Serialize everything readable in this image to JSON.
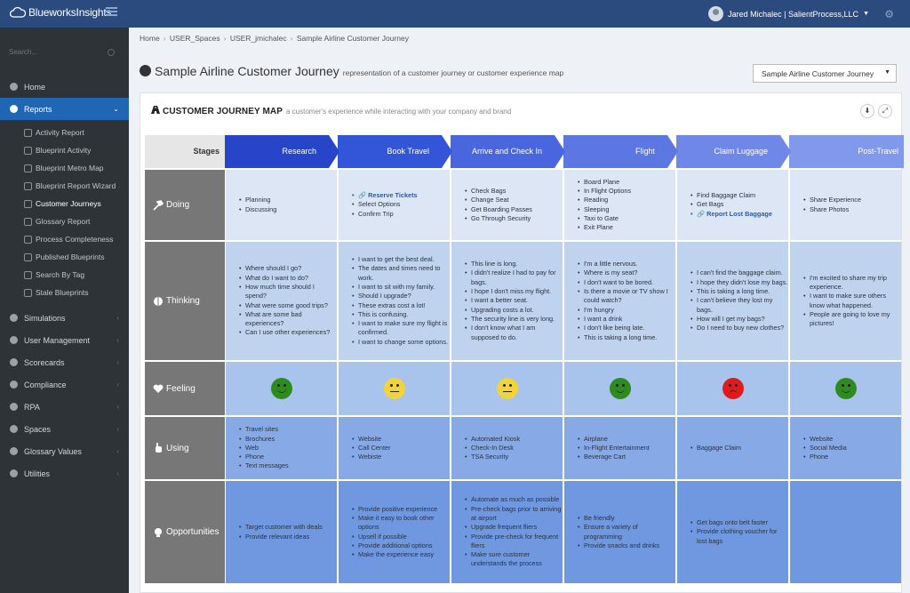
{
  "app": {
    "brand": "BlueworksInsights",
    "user": "Jared Michalec | SalientProcess,LLC"
  },
  "sidebar": {
    "search_placeholder": "Search...",
    "items": [
      {
        "label": "Home"
      },
      {
        "label": "Reports"
      },
      {
        "label": "Simulations"
      },
      {
        "label": "User Management"
      },
      {
        "label": "Scorecards"
      },
      {
        "label": "Compliance"
      },
      {
        "label": "RPA"
      },
      {
        "label": "Spaces"
      },
      {
        "label": "Glossary Values"
      },
      {
        "label": "Utilities"
      }
    ],
    "report_items": [
      {
        "label": "Activity Report"
      },
      {
        "label": "Blueprint Activity"
      },
      {
        "label": "Blueprint Metro Map"
      },
      {
        "label": "Blueprint Report Wizard"
      },
      {
        "label": "Customer Journeys"
      },
      {
        "label": "Glossary Report"
      },
      {
        "label": "Process Completeness"
      },
      {
        "label": "Published Blueprints"
      },
      {
        "label": "Search By Tag"
      },
      {
        "label": "Stale Blueprints"
      }
    ]
  },
  "breadcrumb": [
    "Home",
    "USER_Spaces",
    "USER_jmichalec",
    "Sample Airline Customer Journey"
  ],
  "page": {
    "title": "Sample Airline Customer Journey",
    "description": "representation of a customer journey or customer experience map",
    "select_value": "Sample Airline Customer Journey"
  },
  "card": {
    "title": "CUSTOMER JOURNEY MAP",
    "subtitle": "a customer's experience while interacting with your company and brand"
  },
  "map": {
    "stages_label": "Stages",
    "stages": [
      "Research",
      "Book Travel",
      "Arrive and Check In",
      "Flight",
      "Claim Luggage",
      "Post-Travel"
    ],
    "stage_colors": [
      "#2645c8",
      "#3355d8",
      "#4a66de",
      "#5c77e2",
      "#6f87e6",
      "#8199ea"
    ],
    "rows": [
      {
        "label": "Doing",
        "color": "#dce6f4",
        "icon": "hammer-icon",
        "cells": [
          [
            {
              "t": "Planning"
            },
            {
              "t": "Discussing"
            }
          ],
          [
            {
              "t": "Reserve Tickets",
              "link": true
            },
            {
              "t": "Select Options"
            },
            {
              "t": "Confirm Trip"
            }
          ],
          [
            {
              "t": "Check Bags"
            },
            {
              "t": "Change Seat"
            },
            {
              "t": "Get Boarding Passes"
            },
            {
              "t": "Go Through Security"
            }
          ],
          [
            {
              "t": "Board Plane"
            },
            {
              "t": "In Flight Options"
            },
            {
              "t": "Reading"
            },
            {
              "t": "Sleeping"
            },
            {
              "t": "Taxi to Gate"
            },
            {
              "t": "Exit Plane"
            }
          ],
          [
            {
              "t": "Find Baggage Claim"
            },
            {
              "t": "Get Bags"
            },
            {
              "t": "Report Lost Baggage",
              "link": true
            }
          ],
          [
            {
              "t": "Share Experience"
            },
            {
              "t": "Share Photos"
            }
          ]
        ]
      },
      {
        "label": "Thinking",
        "color": "#c0d3ee",
        "icon": "brain-icon",
        "cells": [
          [
            {
              "t": "Where should I go?"
            },
            {
              "t": "What do I want to do?"
            },
            {
              "t": "How much time should I spend?"
            },
            {
              "t": "What were some good trips?"
            },
            {
              "t": "What are some bad experiences?"
            },
            {
              "t": "Can I use other experiences?"
            }
          ],
          [
            {
              "t": "I want to get the best deal."
            },
            {
              "t": "The dates and times need to work."
            },
            {
              "t": "I want to sit with my family."
            },
            {
              "t": "Should I upgrade?"
            },
            {
              "t": "These extras cost a lot!"
            },
            {
              "t": "This is confusing."
            },
            {
              "t": "I want to make sure my flight is confirmed."
            },
            {
              "t": "I want to change some options."
            }
          ],
          [
            {
              "t": "This line is long."
            },
            {
              "t": "I didn't realize I had to pay for bags."
            },
            {
              "t": "I hope I don't miss my flight."
            },
            {
              "t": "I want a better seat."
            },
            {
              "t": "Upgrading costs a lot."
            },
            {
              "t": "The security line is very long."
            },
            {
              "t": "I don't know what I am supposed to do."
            }
          ],
          [
            {
              "t": "I'm a little nervous."
            },
            {
              "t": "Where is my seat?"
            },
            {
              "t": "I don't want to be bored."
            },
            {
              "t": "Is there a movie or TV show I could watch?"
            },
            {
              "t": "I'm hungry"
            },
            {
              "t": "I want a drink"
            },
            {
              "t": "I don't like being late."
            },
            {
              "t": "This is taking a long time."
            }
          ],
          [
            {
              "t": "I can't find the baggage claim."
            },
            {
              "t": "I hope they didn't lose my bags."
            },
            {
              "t": "This is taking a long time."
            },
            {
              "t": "I can't believe they lost my bags."
            },
            {
              "t": "How will I get my bags?"
            },
            {
              "t": "Do I need to buy new clothes?"
            }
          ],
          [
            {
              "t": "I'm excited to share my trip experience."
            },
            {
              "t": "I want to make sure others know what happened."
            },
            {
              "t": "People are going to love my pictures!"
            }
          ]
        ]
      },
      {
        "label": "Feeling",
        "color": "#a8c3ec",
        "icon": "heart-icon",
        "feelings": [
          {
            "mood": "happy",
            "color": "#2e8b1e"
          },
          {
            "mood": "neutral",
            "color": "#f2d43a"
          },
          {
            "mood": "neutral",
            "color": "#f2d43a"
          },
          {
            "mood": "happy",
            "color": "#2e8b1e"
          },
          {
            "mood": "sad",
            "color": "#e01b1b"
          },
          {
            "mood": "happy",
            "color": "#2e8b1e"
          }
        ]
      },
      {
        "label": "Using",
        "color": "#87aae6",
        "icon": "hand-icon",
        "cells": [
          [
            {
              "t": "Travel sites"
            },
            {
              "t": "Brochures"
            },
            {
              "t": "Web"
            },
            {
              "t": "Phone"
            },
            {
              "t": "Text messages"
            }
          ],
          [
            {
              "t": "Website"
            },
            {
              "t": "Call Center"
            },
            {
              "t": "Webiste"
            }
          ],
          [
            {
              "t": "Automated Kiosk"
            },
            {
              "t": "Check-In Desk"
            },
            {
              "t": "TSA Security"
            }
          ],
          [
            {
              "t": "Airplane"
            },
            {
              "t": "In-Flight Entertainment"
            },
            {
              "t": "Beverage Cart"
            }
          ],
          [
            {
              "t": "Baggage Claim"
            }
          ],
          [
            {
              "t": "Website"
            },
            {
              "t": "Social Media"
            },
            {
              "t": "Phone"
            }
          ]
        ]
      },
      {
        "label": "Opportunities",
        "color": "#6f98e0",
        "icon": "lightbulb-icon",
        "cells": [
          [
            {
              "t": "Target customer with deals"
            },
            {
              "t": "Provide relevant ideas"
            }
          ],
          [
            {
              "t": "Provide positive experience"
            },
            {
              "t": "Make it easy to book other options"
            },
            {
              "t": "Upsell if possible"
            },
            {
              "t": "Provide additional options"
            },
            {
              "t": "Make the experience easy"
            }
          ],
          [
            {
              "t": "Automate as much as possible"
            },
            {
              "t": "Pre-check bags prior to arriving at airport"
            },
            {
              "t": "Upgrade frequent fliers"
            },
            {
              "t": "Provide pre-check for frequent fliers"
            },
            {
              "t": "Make sure customer understands the process"
            }
          ],
          [
            {
              "t": "Be friendly"
            },
            {
              "t": "Ensure a variety of programming"
            },
            {
              "t": "Provide snacks and drinks"
            }
          ],
          [
            {
              "t": "Get bags onto belt faster"
            },
            {
              "t": "Provide clothing voucher for lost bags"
            }
          ],
          []
        ]
      }
    ]
  }
}
